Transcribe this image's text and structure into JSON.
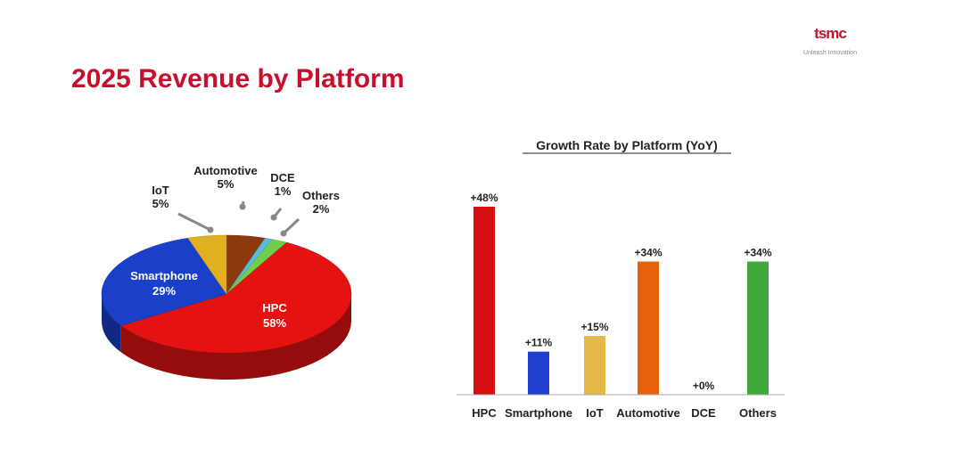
{
  "header": {
    "title": "2025 Revenue by Platform"
  },
  "logo": {
    "name": "tsmc",
    "tagline": "Unleash Innovation"
  },
  "chart_data": [
    {
      "type": "pie",
      "title": "",
      "categories": [
        "Automotive",
        "DCE",
        "Others",
        "HPC",
        "Smartphone",
        "IoT"
      ],
      "values": [
        5,
        1,
        2,
        58,
        29,
        5
      ],
      "labels": [
        "5%",
        "1%",
        "2%",
        "58%",
        "29%",
        "5%"
      ],
      "colors": [
        "#8b3a0f",
        "#5bb8e0",
        "#6fcf4a",
        "#e51212",
        "#1a3fc8",
        "#e0b020"
      ],
      "style": "3d"
    },
    {
      "type": "bar",
      "title": "Growth Rate by Platform (YoY)",
      "categories": [
        "HPC",
        "Smartphone",
        "IoT",
        "Automotive",
        "DCE",
        "Others"
      ],
      "values": [
        48,
        11,
        15,
        34,
        0,
        34
      ],
      "labels": [
        "+48%",
        "+11%",
        "+15%",
        "+34%",
        "+0%",
        "+34%"
      ],
      "colors": [
        "#d41010",
        "#1f3fcc",
        "#e6b84a",
        "#e8620c",
        "#888888",
        "#3ea83a"
      ],
      "ylim": [
        0,
        48
      ],
      "grid": false
    }
  ]
}
